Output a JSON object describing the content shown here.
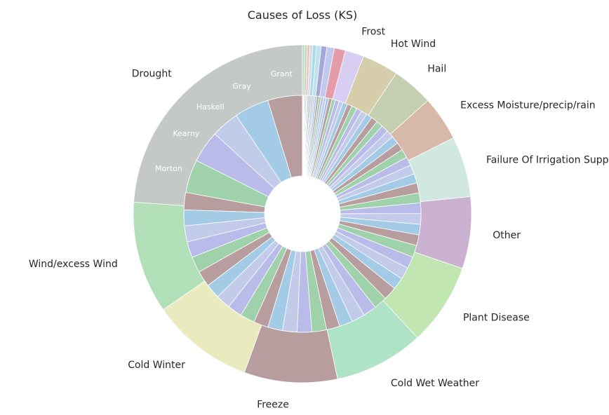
{
  "chart_data": {
    "type": "pie",
    "subtype": "nested-donut",
    "title": "Causes of Loss (KS)",
    "outer": {
      "start_angle_deg": 90,
      "direction": "counterclockwise",
      "slices": [
        {
          "label": "Drought",
          "value": 26.8,
          "color": "#c4c9c8"
        },
        {
          "label": "Wind/excess Wind",
          "value": 12.0,
          "color": "#b1dfb8"
        },
        {
          "label": "Cold Winter",
          "value": 11.0,
          "color": "#e9ebbe"
        },
        {
          "label": "Freeze",
          "value": 10.0,
          "color": "#b89d9f"
        },
        {
          "label": "Cold Wet Weather",
          "value": 9.6,
          "color": "#afe3c6"
        },
        {
          "label": "Plant Disease",
          "value": 8.8,
          "color": "#c1e6b2"
        },
        {
          "label": "Other",
          "value": 7.7,
          "color": "#cbb1d0"
        },
        {
          "label": "Failure Of Irrigation Supply",
          "value": 6.5,
          "color": "#d0e8e0"
        },
        {
          "label": "Excess Moisture/precip/rain",
          "value": 4.8,
          "color": "#d6b9a8"
        },
        {
          "label": "Hail",
          "value": 4.4,
          "color": "#c4cfb1"
        },
        {
          "label": "Hot Wind",
          "value": 3.9,
          "color": "#d6cdab"
        },
        {
          "label": "Frost",
          "value": 2.0,
          "color": "#d8cdf2"
        },
        {
          "label": "",
          "value": 1.2,
          "color": "#e49ca8"
        },
        {
          "label": "",
          "value": 0.8,
          "color": "#c1c9ee"
        },
        {
          "label": "",
          "value": 0.6,
          "color": "#a4a8d8"
        },
        {
          "label": "",
          "value": 0.5,
          "color": "#bfe1f0"
        },
        {
          "label": "",
          "value": 0.4,
          "color": "#a5dde9"
        },
        {
          "label": "",
          "value": 0.3,
          "color": "#d6d6ed"
        },
        {
          "label": "",
          "value": 0.3,
          "color": "#e4c9b5"
        },
        {
          "label": "",
          "value": 0.25,
          "color": "#c8c9c4"
        },
        {
          "label": "",
          "value": 0.25,
          "color": "#b1dfb8"
        }
      ]
    },
    "inner": {
      "start_angle_deg": 90,
      "direction": "counterclockwise",
      "palette": [
        "#b89d9f",
        "#a3cbe6",
        "#c3cbeb",
        "#b9bce8",
        "#9fd1ab"
      ],
      "slices": [
        {
          "label": "Grant",
          "value": 5.2
        },
        {
          "label": "Gray",
          "value": 5.2
        },
        {
          "label": "Haskell",
          "value": 4.2
        },
        {
          "label": "Kearny",
          "value": 4.8
        },
        {
          "label": "Morton",
          "value": 5.0
        },
        {
          "label": "",
          "value": 2.6
        },
        {
          "label": "",
          "value": 2.4
        },
        {
          "label": "",
          "value": 2.4
        },
        {
          "label": "",
          "value": 2.4
        },
        {
          "label": "",
          "value": 2.4
        },
        {
          "label": "",
          "value": 2.4
        },
        {
          "label": "",
          "value": 2.2
        },
        {
          "label": "",
          "value": 2.2
        },
        {
          "label": "",
          "value": 2.2
        },
        {
          "label": "",
          "value": 2.2
        },
        {
          "label": "",
          "value": 2.2
        },
        {
          "label": "",
          "value": 2.2
        },
        {
          "label": "",
          "value": 2.2
        },
        {
          "label": "",
          "value": 2.2
        },
        {
          "label": "",
          "value": 2.2
        },
        {
          "label": "",
          "value": 2.0
        },
        {
          "label": "",
          "value": 2.0
        },
        {
          "label": "",
          "value": 2.0
        },
        {
          "label": "",
          "value": 2.0
        },
        {
          "label": "",
          "value": 2.0
        },
        {
          "label": "",
          "value": 2.0
        },
        {
          "label": "",
          "value": 1.8
        },
        {
          "label": "",
          "value": 1.8
        },
        {
          "label": "",
          "value": 1.8
        },
        {
          "label": "",
          "value": 1.8
        },
        {
          "label": "",
          "value": 1.6
        },
        {
          "label": "",
          "value": 1.6
        },
        {
          "label": "",
          "value": 1.6
        },
        {
          "label": "",
          "value": 1.6
        },
        {
          "label": "",
          "value": 1.5
        },
        {
          "label": "",
          "value": 1.5
        },
        {
          "label": "",
          "value": 1.4
        },
        {
          "label": "",
          "value": 1.4
        },
        {
          "label": "",
          "value": 1.3
        },
        {
          "label": "",
          "value": 1.3
        },
        {
          "label": "",
          "value": 1.2
        },
        {
          "label": "",
          "value": 1.2
        },
        {
          "label": "",
          "value": 1.1
        },
        {
          "label": "",
          "value": 1.1
        },
        {
          "label": "",
          "value": 1.0
        },
        {
          "label": "",
          "value": 1.0
        },
        {
          "label": "",
          "value": 0.9
        },
        {
          "label": "",
          "value": 0.9
        },
        {
          "label": "",
          "value": 0.8
        },
        {
          "label": "",
          "value": 0.8
        },
        {
          "label": "",
          "value": 0.7
        },
        {
          "label": "",
          "value": 0.7
        },
        {
          "label": "",
          "value": 0.6
        },
        {
          "label": "",
          "value": 0.6
        },
        {
          "label": "",
          "value": 0.5
        },
        {
          "label": "",
          "value": 0.5
        },
        {
          "label": "",
          "value": 0.4
        },
        {
          "label": "",
          "value": 0.4
        },
        {
          "label": "",
          "value": 0.35
        },
        {
          "label": "",
          "value": 0.35
        },
        {
          "label": "",
          "value": 0.3
        },
        {
          "label": "",
          "value": 0.3
        },
        {
          "label": "",
          "value": 0.25
        },
        {
          "label": "",
          "value": 0.25
        },
        {
          "label": "",
          "value": 0.2
        },
        {
          "label": "",
          "value": 0.2
        },
        {
          "label": "",
          "value": 0.2
        },
        {
          "label": "",
          "value": 0.15
        },
        {
          "label": "",
          "value": 0.15
        },
        {
          "label": "",
          "value": 0.15
        },
        {
          "label": "",
          "value": 0.1
        },
        {
          "label": "",
          "value": 0.1
        },
        {
          "label": "",
          "value": 0.1
        }
      ]
    }
  }
}
